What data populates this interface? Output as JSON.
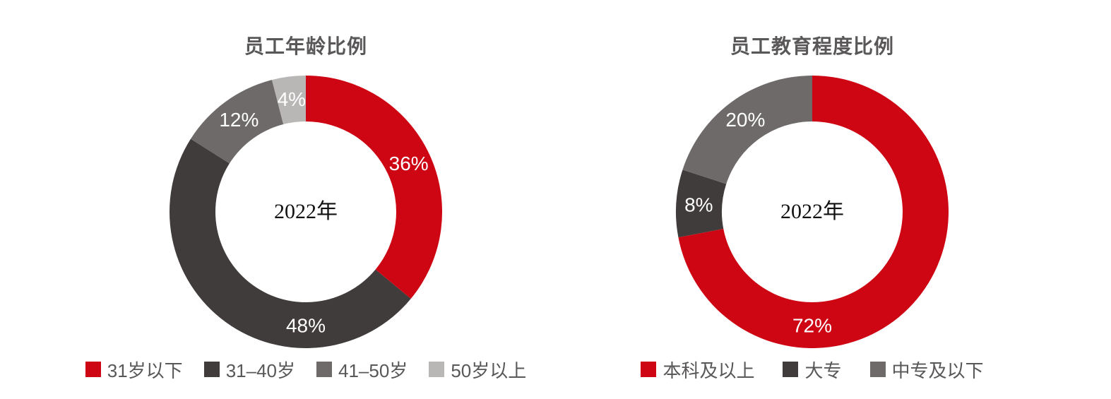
{
  "page": {
    "background": "#ffffff"
  },
  "theme": {
    "accent_red": "#CE0613",
    "dark_gray": "#413C3C",
    "mid_gray": "#6E6A6A",
    "light_gray": "#B9B6B6",
    "title_color": "#595757",
    "data_label_color": "#ffffff",
    "center_text_color": "#111111"
  },
  "chart_data": [
    {
      "type": "pie",
      "subtype": "donut",
      "title": "员工年龄比例",
      "center_label": "2022年",
      "unit": "%",
      "start_angle_deg": 0,
      "direction": "clockwise",
      "legend_position": "bottom",
      "grid": false,
      "categories": [
        "31岁以下",
        "31–40岁",
        "41–50岁",
        "50岁以上"
      ],
      "values": [
        36,
        48,
        12,
        4
      ],
      "colors": [
        "#CE0613",
        "#413C3C",
        "#6E6A6A",
        "#B9B6B6"
      ],
      "data_labels": [
        "36%",
        "48%",
        "12%",
        "4%"
      ],
      "label_angles_deg": [
        64.8,
        180,
        324,
        352.8
      ]
    },
    {
      "type": "pie",
      "subtype": "donut",
      "title": "员工教育程度比例",
      "center_label": "2022年",
      "unit": "%",
      "start_angle_deg": 0,
      "direction": "clockwise",
      "legend_position": "bottom",
      "grid": false,
      "categories": [
        "本科及以上",
        "大专",
        "中专及以下"
      ],
      "values": [
        72,
        8,
        20
      ],
      "colors": [
        "#CE0613",
        "#413C3C",
        "#6E6A6A"
      ],
      "data_labels": [
        "72%",
        "8%",
        "20%"
      ],
      "label_angles_deg": [
        180,
        273.6,
        324
      ]
    }
  ]
}
